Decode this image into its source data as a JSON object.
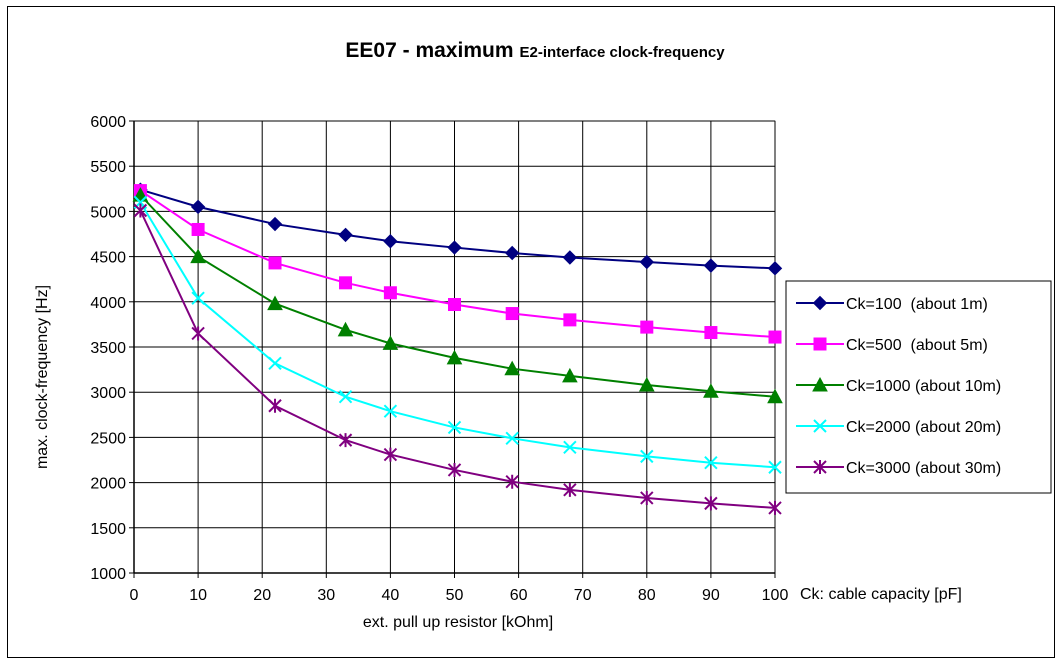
{
  "chart_data": {
    "type": "line",
    "title": "EE07 - maximum",
    "title_suffix": "E2-interface clock-frequency",
    "xlabel": "ext. pull up resistor [kOhm]",
    "ylabel": "max. clock-frequency [Hz]",
    "xlim": [
      0,
      100
    ],
    "ylim": [
      1000,
      6000
    ],
    "xticks": [
      0,
      10,
      20,
      30,
      40,
      50,
      60,
      70,
      80,
      90,
      100
    ],
    "yticks": [
      1000,
      1500,
      2000,
      2500,
      3000,
      3500,
      4000,
      4500,
      5000,
      5500,
      6000
    ],
    "grid": true,
    "legend_position": "right",
    "note": "Ck: cable capacity [pF]",
    "x": [
      1,
      10,
      22,
      33,
      40,
      50,
      59,
      68,
      80,
      90,
      100
    ],
    "series": [
      {
        "name": "Ck=100  (about 1m)",
        "color": "#000080",
        "marker": "diamond",
        "values": [
          5240,
          5050,
          4860,
          4740,
          4670,
          4600,
          4540,
          4490,
          4440,
          4400,
          4370
        ]
      },
      {
        "name": "Ck=500  (about 5m)",
        "color": "#ff00ff",
        "marker": "square",
        "values": [
          5230,
          4800,
          4430,
          4210,
          4100,
          3970,
          3870,
          3800,
          3720,
          3660,
          3610
        ]
      },
      {
        "name": "Ck=1000 (about 10m)",
        "color": "#008000",
        "marker": "triangle",
        "values": [
          5180,
          4500,
          3980,
          3690,
          3540,
          3380,
          3260,
          3180,
          3080,
          3010,
          2950
        ]
      },
      {
        "name": "Ck=2000 (about 20m)",
        "color": "#00ffff",
        "marker": "x",
        "values": [
          5100,
          4040,
          3320,
          2950,
          2790,
          2610,
          2490,
          2390,
          2290,
          2220,
          2170
        ]
      },
      {
        "name": "Ck=3000 (about 30m)",
        "color": "#800080",
        "marker": "star",
        "values": [
          5010,
          3650,
          2850,
          2470,
          2310,
          2140,
          2010,
          1920,
          1830,
          1770,
          1720
        ]
      }
    ]
  }
}
